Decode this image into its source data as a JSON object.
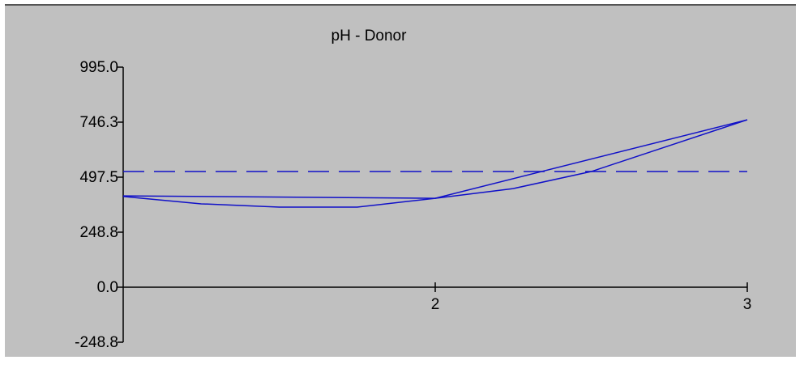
{
  "chart_data": {
    "type": "line",
    "title": "pH - Donor",
    "xlim": [
      1,
      3
    ],
    "xticks": [
      2,
      3
    ],
    "ylim": [
      -248.75,
      995
    ],
    "yticks": [
      {
        "value": 995,
        "label": "995.0"
      },
      {
        "value": 746.25,
        "label": "746.3"
      },
      {
        "value": 497.5,
        "label": "497.5"
      },
      {
        "value": 248.75,
        "label": "248.8"
      },
      {
        "value": 0,
        "label": "0.0"
      },
      {
        "value": -248.75,
        "label": "-248.8"
      }
    ],
    "series": [
      {
        "color": "#1010c8",
        "x": [
          1,
          2,
          3
        ],
        "values": [
          413,
          402,
          757
        ]
      },
      {
        "color": "#1010c8",
        "x": [
          1,
          1.25,
          1.5,
          1.75,
          2,
          2.25,
          2.5,
          2.75,
          3
        ],
        "values": [
          410,
          377,
          362,
          362,
          402,
          446,
          523,
          640,
          757
        ]
      },
      {
        "color": "#1010c8",
        "dashed": true,
        "x": [
          1,
          3
        ],
        "values": [
          523,
          523
        ]
      }
    ]
  }
}
